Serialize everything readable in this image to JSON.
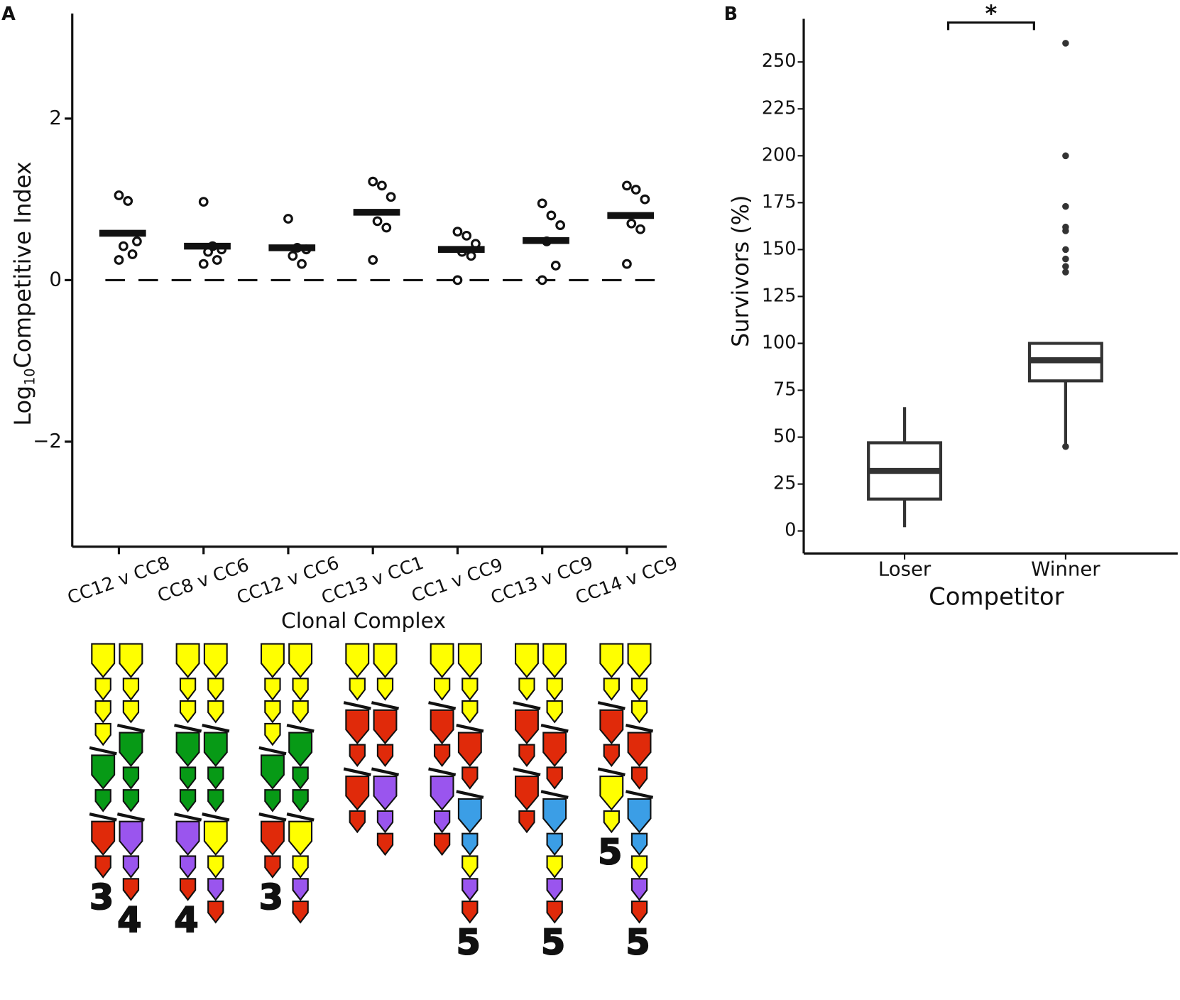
{
  "panels": [
    "A",
    "B"
  ],
  "chart_data": [
    {
      "type": "dot",
      "categories": [
        "CC12 v CC8",
        "CC8 v CC6",
        "CC12 v CC6",
        "CC13 v CC1",
        "CC1 v CC9",
        "CC13 v CC9",
        "CC14 v CC9"
      ],
      "points": [
        [
          1.05,
          0.98,
          0.48,
          0.42,
          0.32,
          0.25
        ],
        [
          0.97,
          0.42,
          0.38,
          0.35,
          0.25,
          0.2
        ],
        [
          0.76,
          0.4,
          0.38,
          0.3,
          0.2
        ],
        [
          1.22,
          1.17,
          1.03,
          0.73,
          0.65,
          0.25
        ],
        [
          0.6,
          0.55,
          0.45,
          0.35,
          0.3,
          0.0
        ],
        [
          0.95,
          0.8,
          0.68,
          0.48,
          0.18,
          0.0
        ],
        [
          1.17,
          1.12,
          1.0,
          0.7,
          0.63,
          0.2
        ]
      ],
      "means": [
        0.58,
        0.42,
        0.4,
        0.84,
        0.38,
        0.49,
        0.8
      ],
      "ylim": [
        -3.3,
        3.3
      ],
      "yticks": [
        {
          "value": -2,
          "label": "−2"
        },
        0,
        2
      ],
      "reference_line": 0,
      "x_label": "Clonal Complex",
      "y_label": {
        "base": "Log",
        "subscript": "10",
        "text": "Competitive Index"
      }
    },
    {
      "type": "box",
      "categories": [
        "Loser",
        "Winner"
      ],
      "boxes": [
        {
          "whisker_low": 2,
          "q1": 17,
          "median": 32,
          "q3": 47,
          "whisker_high": 66,
          "outliers": []
        },
        {
          "whisker_low": 45,
          "q1": 80,
          "median": 91,
          "q3": 100,
          "whisker_high": 100,
          "outliers": [
            45,
            138,
            141,
            145,
            150,
            160,
            162,
            173,
            200,
            260
          ]
        }
      ],
      "ylim": [
        -12,
        273
      ],
      "yticks": [
        0,
        25,
        50,
        75,
        100,
        125,
        150,
        175,
        200,
        225,
        250
      ],
      "x_label": "Competitor",
      "y_label": "Survivors (%)",
      "annotation": "*"
    }
  ],
  "diagram": {
    "labels": [
      "3",
      "4",
      "4",
      "3",
      "5",
      "5",
      "5",
      "5"
    ]
  }
}
